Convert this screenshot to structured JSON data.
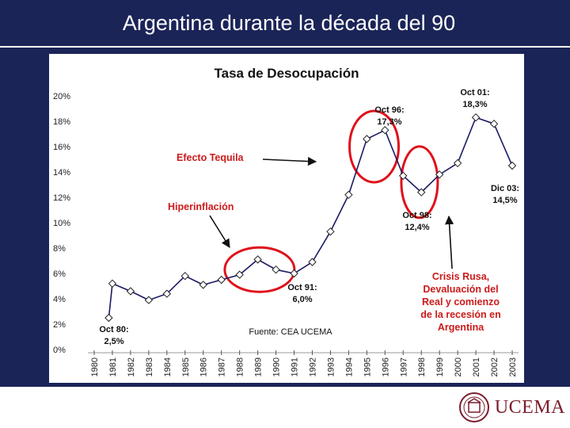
{
  "page_title": "Argentina durante la década del 90",
  "chart_data": {
    "type": "line",
    "title": "Tasa de Desocupación",
    "x": [
      "1980",
      "1981",
      "1982",
      "1983",
      "1984",
      "1985",
      "1986",
      "1987",
      "1988",
      "1989",
      "1990",
      "1991",
      "1992",
      "1993",
      "1994",
      "1995",
      "1996",
      "1997",
      "1998",
      "1999",
      "2000",
      "2001",
      "2002",
      "2003"
    ],
    "series": [
      {
        "color": "#1a1a66",
        "points": [
          {
            "x": 1980.8,
            "y": 2.5
          },
          {
            "x": 1981.0,
            "y": 5.2
          },
          {
            "x": 1982.0,
            "y": 4.6
          },
          {
            "x": 1983.0,
            "y": 3.9
          },
          {
            "x": 1984.0,
            "y": 4.4
          },
          {
            "x": 1985.0,
            "y": 5.8
          },
          {
            "x": 1986.0,
            "y": 5.1
          },
          {
            "x": 1987.0,
            "y": 5.5
          },
          {
            "x": 1988.0,
            "y": 5.9
          },
          {
            "x": 1989.0,
            "y": 7.1
          },
          {
            "x": 1990.0,
            "y": 6.3
          },
          {
            "x": 1991.0,
            "y": 6.0
          },
          {
            "x": 1992.0,
            "y": 6.9
          },
          {
            "x": 1993.0,
            "y": 9.3
          },
          {
            "x": 1994.0,
            "y": 12.2
          },
          {
            "x": 1995.0,
            "y": 16.6
          },
          {
            "x": 1996.0,
            "y": 17.3
          },
          {
            "x": 1997.0,
            "y": 13.7
          },
          {
            "x": 1998.0,
            "y": 12.4
          },
          {
            "x": 1999.0,
            "y": 13.8
          },
          {
            "x": 2000.0,
            "y": 14.7
          },
          {
            "x": 2001.0,
            "y": 18.3
          },
          {
            "x": 2002.0,
            "y": 17.8
          },
          {
            "x": 2003.0,
            "y": 14.5
          }
        ]
      }
    ],
    "y_ticks": [
      "0%",
      "2%",
      "4%",
      "6%",
      "8%",
      "10%",
      "12%",
      "14%",
      "16%",
      "18%",
      "20%"
    ],
    "ylim": [
      0,
      20
    ],
    "xlim": [
      1980,
      2003
    ],
    "grid": false,
    "annotations": [
      {
        "id": "oct80",
        "lines": [
          "Oct 80:",
          "2,5%"
        ]
      },
      {
        "id": "oct91",
        "lines": [
          "Oct 91:",
          "6,0%"
        ]
      },
      {
        "id": "oct96",
        "lines": [
          "Oct 96:",
          "17,3%"
        ]
      },
      {
        "id": "oct98",
        "lines": [
          "Oct 98:",
          "12,4%"
        ]
      },
      {
        "id": "oct01",
        "lines": [
          "Oct 01:",
          "18,3%"
        ]
      },
      {
        "id": "dic03",
        "lines": [
          "Dic 03:",
          "14,5%"
        ]
      }
    ],
    "callouts": [
      {
        "id": "tequila",
        "text": "Efecto Tequila",
        "color": "#cc1a1a"
      },
      {
        "id": "hiper",
        "text": "Hiperinflación",
        "color": "#cc1a1a"
      },
      {
        "id": "crisis",
        "lines": [
          "Crisis Rusa,",
          "Devaluación del",
          "Real y comienzo",
          "de la recesión en",
          "Argentina"
        ],
        "color": "#cc1a1a"
      }
    ],
    "source_note": "Fuente: CEA UCEMA"
  },
  "logo_text": "UCEMA"
}
